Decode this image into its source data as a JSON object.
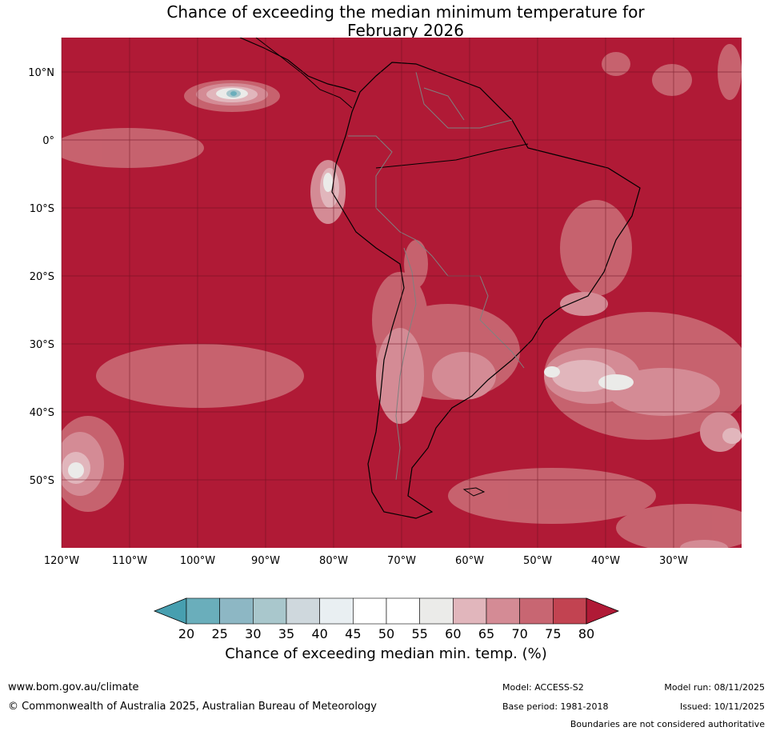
{
  "title_line1": "Chance of exceeding the median minimum temperature for",
  "title_line2": "February 2026",
  "map": {
    "lat_labels": [
      "10°N",
      "0°",
      "10°S",
      "20°S",
      "30°S",
      "40°S",
      "50°S"
    ],
    "lon_labels": [
      "120°W",
      "110°W",
      "100°W",
      "90°W",
      "80°W",
      "70°W",
      "60°W",
      "50°W",
      "40°W",
      "30°W"
    ],
    "dominant_fill": "#b01a36",
    "grid_color": "#6a1020",
    "coast_color": "#000000",
    "border_color": "#808080"
  },
  "colorbar": {
    "ticks": [
      "20",
      "25",
      "30",
      "35",
      "40",
      "45",
      "50",
      "55",
      "60",
      "65",
      "70",
      "75",
      "80"
    ],
    "colors": [
      "#479fb0",
      "#6aaebb",
      "#8db7c4",
      "#a9c7cc",
      "#cfd8dd",
      "#e9eff2",
      "#ffffff",
      "#ffffff",
      "#ebebe9",
      "#e1b6bc",
      "#d48b95",
      "#c86672",
      "#c24351",
      "#b01a36"
    ],
    "label": "Chance of exceeding median min. temp. (%)"
  },
  "footer": {
    "website": "www.bom.gov.au/climate",
    "copyright": "© Commonwealth of Australia 2025, Australian Bureau of Meteorology",
    "model": "Model: ACCESS-S2",
    "base_period": "Base period: 1981-2018",
    "model_run": "Model run: 08/11/2025",
    "issued": "Issued: 10/11/2025",
    "disclaimer": "Boundaries are not considered authoritative"
  }
}
